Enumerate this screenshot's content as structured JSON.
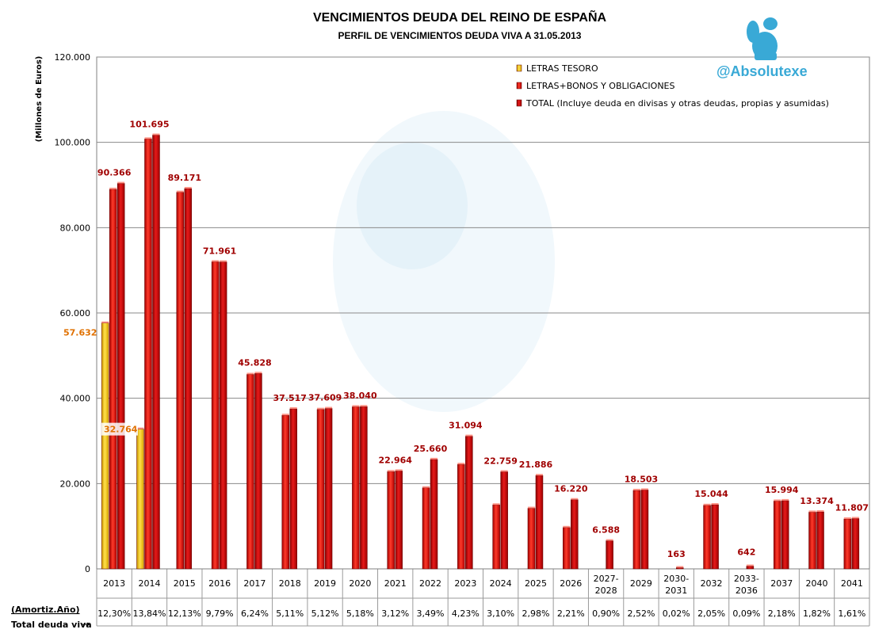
{
  "chart_data": {
    "type": "bar",
    "title": "VENCIMIENTOS DEUDA DEL REINO DE ESPAÑA",
    "subtitle": "PERFIL DE VENCIMIENTOS DEUDA VIVA A 31.05.2013",
    "ylabel": "(Millones de Euros)",
    "ylim": [
      0,
      120000
    ],
    "yticks": [
      0,
      20000,
      40000,
      60000,
      80000,
      100000,
      120000
    ],
    "ytick_labels": [
      "0",
      "20.000",
      "40.000",
      "60.000",
      "80.000",
      "100.000",
      "120.000"
    ],
    "grid": true,
    "legend_position": "top-right",
    "categories": [
      "2013",
      "2014",
      "2015",
      "2016",
      "2017",
      "2018",
      "2019",
      "2020",
      "2021",
      "2022",
      "2023",
      "2024",
      "2025",
      "2026",
      "2027-\n2028",
      "2029",
      "2030-\n2031",
      "2032",
      "2033-\n2036",
      "2037",
      "2040",
      "2041"
    ],
    "series": [
      {
        "name": "LETRAS TESORO",
        "color": "#f5c000",
        "values": [
          57632,
          32764,
          null,
          null,
          null,
          null,
          null,
          null,
          null,
          null,
          null,
          null,
          null,
          null,
          null,
          null,
          null,
          null,
          null,
          null,
          null,
          null
        ],
        "labels": [
          "57.632",
          "32.764",
          "",
          "",
          "",
          "",
          "",
          "",
          "",
          "",
          "",
          "",
          "",
          "",
          "",
          "",
          "",
          "",
          "",
          "",
          "",
          ""
        ]
      },
      {
        "name": "LETRAS+BONOS Y OBLIGACIONES",
        "color": "#e81010",
        "values": [
          89000,
          100800,
          88300,
          72000,
          45600,
          36000,
          37400,
          38000,
          22800,
          19000,
          24500,
          15000,
          14200,
          9700,
          null,
          18400,
          null,
          14900,
          null,
          15900,
          13300,
          11700
        ]
      },
      {
        "name": "TOTAL (Incluye deuda en divisas y otras deudas, propias y asumidas)",
        "color": "#c00000",
        "values": [
          90366,
          101695,
          89171,
          71961,
          45828,
          37517,
          37609,
          38040,
          22964,
          25660,
          31094,
          22759,
          21886,
          16220,
          6588,
          18503,
          163,
          15044,
          642,
          15994,
          13374,
          11807
        ],
        "labels": [
          "90.366",
          "101.695",
          "89.171",
          "71.961",
          "45.828",
          "37.517",
          "37.609",
          "38.040",
          "22.964",
          "25.660",
          "31.094",
          "22.759",
          "21.886",
          "16.220",
          "6.588",
          "18.503",
          "163",
          "15.044",
          "642",
          "15.994",
          "13.374",
          "11.807"
        ]
      }
    ],
    "table": {
      "row_label_1": "(Amortiz.Año)",
      "row_label_2": "Total deuda viva",
      "arrow": "→",
      "percentages": [
        "12,30%",
        "13,84%",
        "12,13%",
        "9,79%",
        "6,24%",
        "5,11%",
        "5,12%",
        "5,18%",
        "3,12%",
        "3,49%",
        "4,23%",
        "3,10%",
        "2,98%",
        "2,21%",
        "0,90%",
        "2,52%",
        "0,02%",
        "2,05%",
        "0,09%",
        "2,18%",
        "1,82%",
        "1,61%"
      ]
    }
  },
  "brand": {
    "handle": "@Absolutexe",
    "logo_icon": "griffin-logo-icon",
    "brand_color": "#39a9d6"
  }
}
